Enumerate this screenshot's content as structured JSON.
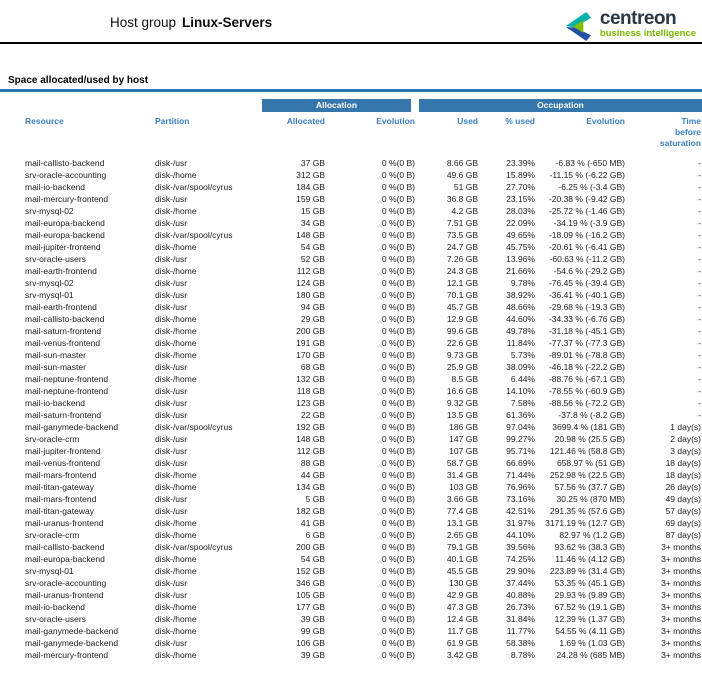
{
  "header": {
    "title_prefix": "Host group",
    "title_name": "Linux-Servers",
    "logo": {
      "brand": "centreon",
      "tagline": "business intelligence"
    }
  },
  "section": {
    "title": "Space allocated/used by host"
  },
  "colors": {
    "band_blue": "#3577ad",
    "header_text_blue": "#3a7fc1",
    "section_rule_blue": "#2c74b3",
    "brand_teal": "#00b2a9",
    "brand_green": "#84bd00",
    "brand_blue": "#2450a4",
    "brand_navy": "#2b3844",
    "tagline_green": "#7ab800"
  },
  "table": {
    "groups": [
      "Allocation",
      "Occupation"
    ],
    "columns": [
      "Resource",
      "Partition",
      "Allocated",
      "Evolution",
      "Used",
      "% used",
      "Evolution",
      "Time\nbefore\nsaturation"
    ],
    "rows": [
      [
        "mail-callisto-backend",
        "disk-/usr",
        "37 GB",
        "0 %(0 B)",
        "8.66 GB",
        "23.39%",
        "-6.83 % (-650 MB)",
        "-"
      ],
      [
        "srv-oracle-accounting",
        "disk-/home",
        "312 GB",
        "0 %(0 B)",
        "49.6 GB",
        "15.89%",
        "-11.15 % (-6.22 GB)",
        "-"
      ],
      [
        "mail-io-backend",
        "disk-/var/spool/cyrus",
        "184 GB",
        "0 %(0 B)",
        "51 GB",
        "27.70%",
        "-6.25 % (-3.4 GB)",
        "-"
      ],
      [
        "mail-mercury-frontend",
        "disk-/usr",
        "159 GB",
        "0 %(0 B)",
        "36.8 GB",
        "23.15%",
        "-20.38 % (-9.42 GB)",
        "-"
      ],
      [
        "srv-mysql-02",
        "disk-/home",
        "15 GB",
        "0 %(0 B)",
        "4.2 GB",
        "28.03%",
        "-25.72 % (-1.46 GB)",
        "-"
      ],
      [
        "mail-europa-backend",
        "disk-/usr",
        "34 GB",
        "0 %(0 B)",
        "7.51 GB",
        "22.09%",
        "-34.19 % (-3.9 GB)",
        "-"
      ],
      [
        "mail-europa-backend",
        "disk-/var/spool/cyrus",
        "148 GB",
        "0 %(0 B)",
        "73.5 GB",
        "49.65%",
        "-18.09 % (-16.2 GB)",
        "-"
      ],
      [
        "mail-jupiter-frontend",
        "disk-/home",
        "54 GB",
        "0 %(0 B)",
        "24.7 GB",
        "45.75%",
        "-20.61 % (-6.41 GB)",
        "-"
      ],
      [
        "srv-oracle-users",
        "disk-/usr",
        "52 GB",
        "0 %(0 B)",
        "7.26 GB",
        "13.96%",
        "-60.63 % (-11.2 GB)",
        "-"
      ],
      [
        "mail-earth-frontend",
        "disk-/home",
        "112 GB",
        "0 %(0 B)",
        "24.3 GB",
        "21.66%",
        "-54.6 % (-29.2 GB)",
        "-"
      ],
      [
        "srv-mysql-02",
        "disk-/usr",
        "124 GB",
        "0 %(0 B)",
        "12.1 GB",
        "9.78%",
        "-76.45 % (-39.4 GB)",
        "-"
      ],
      [
        "srv-mysql-01",
        "disk-/usr",
        "180 GB",
        "0 %(0 B)",
        "70.1 GB",
        "38.92%",
        "-36.41 % (-40.1 GB)",
        "-"
      ],
      [
        "mail-earth-frontend",
        "disk-/usr",
        "94 GB",
        "0 %(0 B)",
        "45.7 GB",
        "48.66%",
        "-29.68 % (-19.3 GB)",
        "-"
      ],
      [
        "mail-callisto-backend",
        "disk-/home",
        "29 GB",
        "0 %(0 B)",
        "12.9 GB",
        "44.60%",
        "-34.33 % (-6.76 GB)",
        "-"
      ],
      [
        "mail-saturn-frontend",
        "disk-/home",
        "200 GB",
        "0 %(0 B)",
        "99.6 GB",
        "49.78%",
        "-31.18 % (-45.1 GB)",
        "-"
      ],
      [
        "mail-venus-frontend",
        "disk-/home",
        "191 GB",
        "0 %(0 B)",
        "22.6 GB",
        "11.84%",
        "-77.37 % (-77.3 GB)",
        "-"
      ],
      [
        "mail-sun-master",
        "disk-/home",
        "170 GB",
        "0 %(0 B)",
        "9.73 GB",
        "5.73%",
        "-89.01 % (-78.8 GB)",
        "-"
      ],
      [
        "mail-sun-master",
        "disk-/usr",
        "68 GB",
        "0 %(0 B)",
        "25.9 GB",
        "38.09%",
        "-46.18 % (-22.2 GB)",
        "-"
      ],
      [
        "mail-neptune-frontend",
        "disk-/home",
        "132 GB",
        "0 %(0 B)",
        "8.5 GB",
        "6.44%",
        "-88.76 % (-67.1 GB)",
        "-"
      ],
      [
        "mail-neptune-frontend",
        "disk-/usr",
        "118 GB",
        "0 %(0 B)",
        "16.6 GB",
        "14.10%",
        "-78.55 % (-60.9 GB)",
        "-"
      ],
      [
        "mail-io-backend",
        "disk-/usr",
        "123 GB",
        "0 %(0 B)",
        "9.32 GB",
        "7.58%",
        "-88.56 % (-72.2 GB)",
        "-"
      ],
      [
        "mail-saturn-frontend",
        "disk-/usr",
        "22 GB",
        "0 %(0 B)",
        "13.5 GB",
        "61.36%",
        "-37.8 % (-8.2 GB)",
        "-"
      ],
      [
        "mail-ganymede-backend",
        "disk-/var/spool/cyrus",
        "192 GB",
        "0 %(0 B)",
        "186 GB",
        "97.04%",
        "3699.4 % (181 GB)",
        "1 day(s)"
      ],
      [
        "srv-oracle-crm",
        "disk-/usr",
        "148 GB",
        "0 %(0 B)",
        "147 GB",
        "99.27%",
        "20.98 % (25.5 GB)",
        "2 day(s)"
      ],
      [
        "mail-jupiter-frontend",
        "disk-/usr",
        "112 GB",
        "0 %(0 B)",
        "107 GB",
        "95.71%",
        "121.46 % (58.8 GB)",
        "3 day(s)"
      ],
      [
        "mail-venus-frontend",
        "disk-/usr",
        "88 GB",
        "0 %(0 B)",
        "58.7 GB",
        "66.69%",
        "658.97 % (51 GB)",
        "18 day(s)"
      ],
      [
        "mail-mars-frontend",
        "disk-/home",
        "44 GB",
        "0 %(0 B)",
        "31.4 GB",
        "71.44%",
        "252.98 % (22.5 GB)",
        "18 day(s)"
      ],
      [
        "mail-titan-gateway",
        "disk-/home",
        "134 GB",
        "0 %(0 B)",
        "103 GB",
        "76.96%",
        "57.56 % (37.7 GB)",
        "26 day(s)"
      ],
      [
        "mail-mars-frontend",
        "disk-/usr",
        "5 GB",
        "0 %(0 B)",
        "3.66 GB",
        "73.16%",
        "30.25 % (870 MB)",
        "49 day(s)"
      ],
      [
        "mail-titan-gateway",
        "disk-/usr",
        "182 GB",
        "0 %(0 B)",
        "77.4 GB",
        "42.51%",
        "291.35 % (57.6 GB)",
        "57 day(s)"
      ],
      [
        "mail-uranus-frontend",
        "disk-/home",
        "41 GB",
        "0 %(0 B)",
        "13.1 GB",
        "31.97%",
        "3171.19 % (12.7 GB)",
        "69 day(s)"
      ],
      [
        "srv-oracle-crm",
        "disk-/home",
        "6 GB",
        "0 %(0 B)",
        "2.65 GB",
        "44.10%",
        "82.97 % (1.2 GB)",
        "87 day(s)"
      ],
      [
        "mail-callisto-backend",
        "disk-/var/spool/cyrus",
        "200 GB",
        "0 %(0 B)",
        "79.1 GB",
        "39.56%",
        "93.62 % (38.3 GB)",
        "3+ months"
      ],
      [
        "mail-europa-backend",
        "disk-/home",
        "54 GB",
        "0 %(0 B)",
        "40.1 GB",
        "74.25%",
        "11.46 % (4.12 GB)",
        "3+ months"
      ],
      [
        "srv-mysql-01",
        "disk-/home",
        "152 GB",
        "0 %(0 B)",
        "45.5 GB",
        "29.90%",
        "223.89 % (31.4 GB)",
        "3+ months"
      ],
      [
        "srv-oracle-accounting",
        "disk-/usr",
        "346 GB",
        "0 %(0 B)",
        "130 GB",
        "37.44%",
        "53.35 % (45.1 GB)",
        "3+ months"
      ],
      [
        "mail-uranus-frontend",
        "disk-/usr",
        "105 GB",
        "0 %(0 B)",
        "42.9 GB",
        "40.88%",
        "29.93 % (9.89 GB)",
        "3+ months"
      ],
      [
        "mail-io-backend",
        "disk-/home",
        "177 GB",
        "0 %(0 B)",
        "47.3 GB",
        "26.73%",
        "67.52 % (19.1 GB)",
        "3+ months"
      ],
      [
        "srv-oracle-users",
        "disk-/home",
        "39 GB",
        "0 %(0 B)",
        "12.4 GB",
        "31.84%",
        "12.39 % (1.37 GB)",
        "3+ months"
      ],
      [
        "mail-ganymede-backend",
        "disk-/home",
        "99 GB",
        "0 %(0 B)",
        "11.7 GB",
        "11.77%",
        "54.55 % (4.11 GB)",
        "3+ months"
      ],
      [
        "mail-ganymede-backend",
        "disk-/usr",
        "106 GB",
        "0 %(0 B)",
        "61.9 GB",
        "58.38%",
        "1.69 % (1.03 GB)",
        "3+ months"
      ],
      [
        "mail-mercury-frontend",
        "disk-/home",
        "39 GB",
        "0 %(0 B)",
        "3.42 GB",
        "8.78%",
        "24.28 % (685 MB)",
        "3+ months"
      ]
    ]
  }
}
